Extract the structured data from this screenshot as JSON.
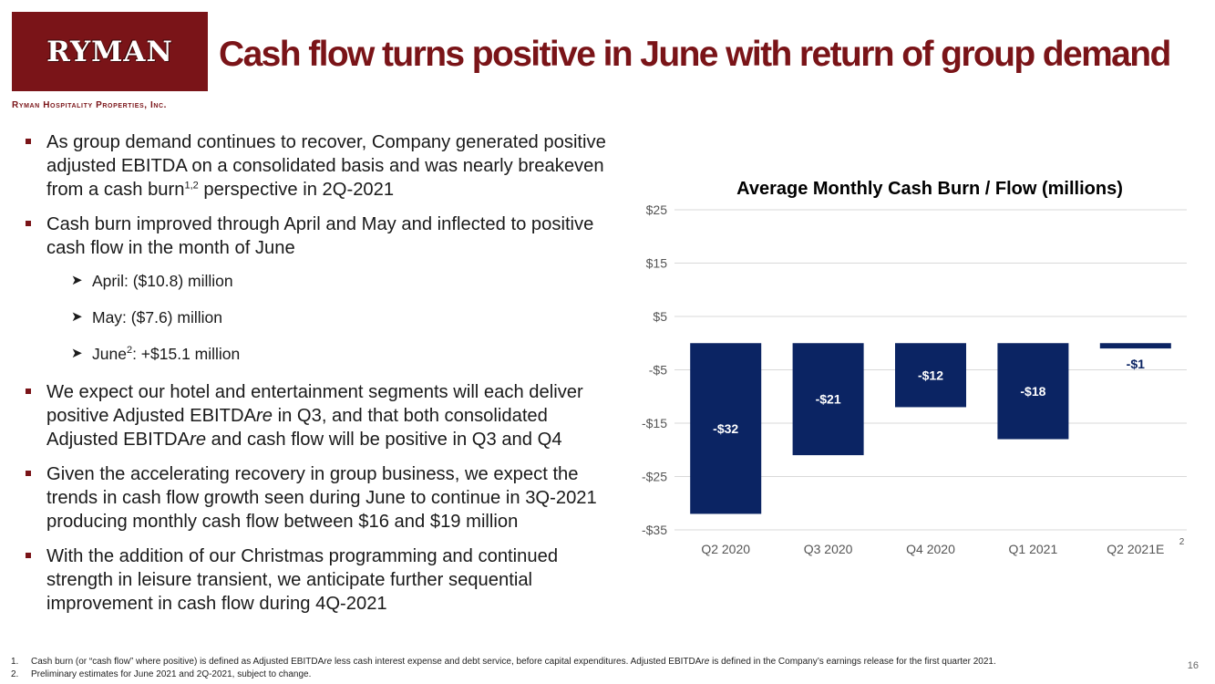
{
  "logo": {
    "text": "RYMAN"
  },
  "company_name": "Ryman Hospitality Properties, Inc.",
  "title": "Cash flow turns positive in June with return of group demand",
  "bullets": [
    {
      "pre": "As group demand continues to recover, Company generated positive adjusted EBITDA on a consolidated basis and was nearly breakeven from a cash burn",
      "sup": "1,2",
      "post": " perspective in 2Q-2021"
    },
    {
      "text": "Cash burn improved through April and May and inflected to positive cash flow in the month of June"
    },
    {
      "text": "We expect our hotel and entertainment segments will each deliver positive Adjusted EBITDA",
      "italic1": "re",
      "mid": " in Q3, and that both consolidated Adjusted EBITDA",
      "italic2": "re",
      "post": " and cash flow will be positive in Q3 and Q4"
    },
    {
      "text": "Given the accelerating recovery in group business, we expect the trends in cash flow growth seen during June to continue in 3Q-2021 producing monthly cash flow between $16 and $19 million"
    },
    {
      "text": "With the addition of our Christmas programming and continued strength in leisure transient, we anticipate further sequential improvement in cash flow during 4Q-2021"
    }
  ],
  "sub_bullets": [
    {
      "pre": "April: ($10.8) million"
    },
    {
      "pre": "May: ($7.6) million"
    },
    {
      "pre": "June",
      "sup": "2",
      "post": ": +$15.1 million"
    }
  ],
  "footnotes": [
    {
      "num": "1.",
      "pre": "Cash burn (or “cash flow” where positive) is defined as Adjusted EBITDA",
      "italic1": "re",
      "mid": " less cash interest expense and debt service, before capital expenditures. Adjusted EBITDA",
      "italic2": "re",
      "post": " is defined in the Company’s earnings release for the first quarter 2021."
    },
    {
      "num": "2.",
      "pre": "Preliminary estimates for June 2021 and 2Q-2021, subject to change."
    }
  ],
  "page_number": "16",
  "colors": {
    "brand": "#7a1418",
    "bar": "#0b2463",
    "grid": "#d9d9d9"
  },
  "chart_data": {
    "type": "bar",
    "title": "Average Monthly Cash Burn / Flow (millions)",
    "categories": [
      "Q2 2020",
      "Q3 2020",
      "Q4 2020",
      "Q1 2021",
      "Q2 2021E"
    ],
    "values": [
      -32,
      -21,
      -12,
      -18,
      -1
    ],
    "data_labels": [
      "-$32",
      "-$21",
      "-$12",
      "-$18",
      "-$1"
    ],
    "category_superscript": {
      "index": 4,
      "text": "2"
    },
    "yticks": [
      25,
      15,
      5,
      -5,
      -15,
      -25,
      -35
    ],
    "ytick_labels": [
      "$25",
      "$15",
      "$5",
      "-$5",
      "-$15",
      "-$25",
      "-$35"
    ],
    "ylim": [
      -35,
      25
    ],
    "grid": true,
    "xlabel": "",
    "ylabel": ""
  }
}
